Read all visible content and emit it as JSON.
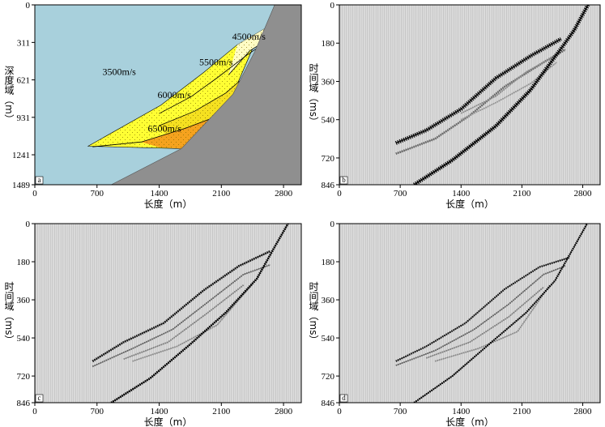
{
  "figure": {
    "panels": [
      {
        "id": "a",
        "label": "a"
      },
      {
        "id": "b",
        "label": "b"
      },
      {
        "id": "c",
        "label": "c"
      },
      {
        "id": "d",
        "label": "d"
      }
    ]
  },
  "chart_data": [
    {
      "panel": "a",
      "type": "diagram",
      "title": "",
      "xlabel": "长度（m）",
      "ylabel": "深度域（m）",
      "xlim": [
        0,
        3000
      ],
      "ylim": [
        1489,
        0
      ],
      "xticks": [
        0,
        700,
        1400,
        2100,
        2800
      ],
      "yticks": [
        0,
        311,
        621,
        931,
        1241,
        1489
      ],
      "regions": [
        {
          "name": "background",
          "velocity": "3500m/s",
          "color": "#a8d0dc"
        },
        {
          "name": "layer-4500",
          "velocity": "4500m/s",
          "color": "#fffcc4"
        },
        {
          "name": "layer-5500",
          "velocity": "5500m/s",
          "color": "#ffff33"
        },
        {
          "name": "layer-6000",
          "velocity": "6000m/s",
          "color": "#f5e020"
        },
        {
          "name": "layer-6500",
          "velocity": "6500m/s",
          "color": "#f5a21e"
        },
        {
          "name": "bedrock",
          "velocity": "",
          "color": "#8f8f8f"
        }
      ],
      "boundaries": {
        "bedrock_top": [
          [
            860,
            1489
          ],
          [
            1650,
            1190
          ],
          [
            2230,
            740
          ],
          [
            2480,
            380
          ],
          [
            2700,
            0
          ]
        ],
        "top_envelope": [
          [
            600,
            1170
          ],
          [
            1420,
            830
          ],
          [
            1900,
            560
          ],
          [
            2280,
            330
          ],
          [
            2630,
            180
          ]
        ],
        "line_4500": [
          [
            2180,
            580
          ],
          [
            2420,
            380
          ],
          [
            2640,
            280
          ]
        ],
        "line_5500": [
          [
            1400,
            900
          ],
          [
            1760,
            760
          ],
          [
            2060,
            600
          ],
          [
            2380,
            420
          ],
          [
            2600,
            310
          ]
        ],
        "line_6000": [
          [
            1400,
            1000
          ],
          [
            1800,
            880
          ],
          [
            2150,
            730
          ],
          [
            2400,
            570
          ]
        ],
        "line_6500": [
          [
            650,
            1175
          ],
          [
            1200,
            1135
          ],
          [
            1700,
            1020
          ],
          [
            2060,
            920
          ]
        ]
      },
      "labels": [
        {
          "text": "3500m/s",
          "x": 950,
          "y": 580
        },
        {
          "text": "4500m/s",
          "x": 2410,
          "y": 290
        },
        {
          "text": "5500m/s",
          "x": 2040,
          "y": 500
        },
        {
          "text": "6000m/s",
          "x": 1570,
          "y": 770
        },
        {
          "text": "6500m/s",
          "x": 1460,
          "y": 1050
        }
      ]
    },
    {
      "panel": "b",
      "type": "seismic-section",
      "xlabel": "长度（m）",
      "ylabel": "时间域（ms）",
      "xlim": [
        0,
        3000
      ],
      "ylim": [
        846,
        0
      ],
      "xticks": [
        0,
        700,
        1400,
        2100,
        2800
      ],
      "yticks": [
        0,
        180,
        360,
        540,
        720,
        846
      ],
      "events": [
        {
          "name": "top",
          "strength": 0.95,
          "width": 5,
          "points": [
            [
              650,
              650
            ],
            [
              1000,
              590
            ],
            [
              1400,
              490
            ],
            [
              1800,
              345
            ],
            [
              2200,
              240
            ],
            [
              2550,
              160
            ]
          ]
        },
        {
          "name": "mid-1",
          "strength": 0.5,
          "width": 3,
          "points": [
            [
              650,
              700
            ],
            [
              1100,
              630
            ],
            [
              1500,
              520
            ],
            [
              1900,
              385
            ],
            [
              2350,
              270
            ],
            [
              2600,
              210
            ]
          ]
        },
        {
          "name": "mid-2",
          "strength": 0.35,
          "width": 2,
          "points": [
            [
              1400,
              510
            ],
            [
              1800,
              430
            ],
            [
              2150,
              315
            ],
            [
              2550,
              225
            ]
          ]
        },
        {
          "name": "mid-3",
          "strength": 0.3,
          "width": 2,
          "points": [
            [
              1400,
              540
            ],
            [
              1800,
              460
            ],
            [
              2200,
              370
            ],
            [
              2500,
              270
            ]
          ]
        },
        {
          "name": "bottom",
          "strength": 1.0,
          "width": 5,
          "points": [
            [
              860,
              846
            ],
            [
              1300,
              730
            ],
            [
              1800,
              570
            ],
            [
              2200,
              400
            ],
            [
              2560,
              200
            ],
            [
              2700,
              120
            ],
            [
              2860,
              0
            ]
          ]
        }
      ]
    },
    {
      "panel": "c",
      "type": "seismic-section",
      "xlabel": "长度（m）",
      "ylabel": "时间域（ms）",
      "xlim": [
        0,
        3000
      ],
      "ylim": [
        846,
        0
      ],
      "xticks": [
        0,
        700,
        1400,
        2100,
        2800
      ],
      "yticks": [
        0,
        180,
        360,
        540,
        720,
        846
      ],
      "events": [
        {
          "name": "top",
          "strength": 0.9,
          "width": 3,
          "points": [
            [
              650,
              650
            ],
            [
              1000,
              560
            ],
            [
              1450,
              470
            ],
            [
              1900,
              315
            ],
            [
              2300,
              200
            ],
            [
              2650,
              130
            ]
          ]
        },
        {
          "name": "mid-1",
          "strength": 0.55,
          "width": 2,
          "points": [
            [
              650,
              675
            ],
            [
              1100,
              590
            ],
            [
              1550,
              500
            ],
            [
              1950,
              370
            ],
            [
              2350,
              240
            ],
            [
              2650,
              195
            ]
          ]
        },
        {
          "name": "mid-2",
          "strength": 0.4,
          "width": 2,
          "points": [
            [
              1000,
              640
            ],
            [
              1500,
              560
            ],
            [
              1950,
              420
            ],
            [
              2350,
              290
            ]
          ]
        },
        {
          "name": "mid-3",
          "strength": 0.35,
          "width": 2,
          "points": [
            [
              1100,
              650
            ],
            [
              1600,
              580
            ],
            [
              2050,
              480
            ],
            [
              2450,
              285
            ]
          ]
        },
        {
          "name": "bottom",
          "strength": 1.0,
          "width": 3,
          "points": [
            [
              860,
              846
            ],
            [
              1300,
              730
            ],
            [
              1750,
              570
            ],
            [
              2150,
              420
            ],
            [
              2500,
              260
            ],
            [
              2700,
              110
            ],
            [
              2850,
              0
            ]
          ]
        }
      ]
    },
    {
      "panel": "d",
      "type": "seismic-section",
      "xlabel": "长度（m）",
      "ylabel": "时间域（ms）",
      "xlim": [
        0,
        3000
      ],
      "ylim": [
        846,
        0
      ],
      "xticks": [
        0,
        700,
        1400,
        2100,
        2800
      ],
      "yticks": [
        0,
        180,
        360,
        540,
        720,
        846
      ],
      "events": [
        {
          "name": "top",
          "strength": 0.9,
          "width": 2.5,
          "points": [
            [
              650,
              650
            ],
            [
              1000,
              580
            ],
            [
              1450,
              470
            ],
            [
              1900,
              310
            ],
            [
              2300,
              205
            ],
            [
              2650,
              160
            ]
          ]
        },
        {
          "name": "mid-1",
          "strength": 0.55,
          "width": 2,
          "points": [
            [
              650,
              670
            ],
            [
              1100,
              600
            ],
            [
              1550,
              500
            ],
            [
              1950,
              380
            ],
            [
              2350,
              240
            ],
            [
              2600,
              200
            ]
          ]
        },
        {
          "name": "mid-2",
          "strength": 0.4,
          "width": 2,
          "points": [
            [
              1000,
              635
            ],
            [
              1500,
              560
            ],
            [
              1950,
              440
            ],
            [
              2350,
              300
            ]
          ]
        },
        {
          "name": "mid-3",
          "strength": 0.35,
          "width": 2,
          "points": [
            [
              1100,
              650
            ],
            [
              1600,
              590
            ],
            [
              2050,
              510
            ],
            [
              2420,
              290
            ]
          ]
        },
        {
          "name": "bottom",
          "strength": 1.0,
          "width": 2.5,
          "points": [
            [
              860,
              846
            ],
            [
              1300,
              720
            ],
            [
              1750,
              560
            ],
            [
              2150,
              420
            ],
            [
              2480,
              270
            ],
            [
              2700,
              110
            ],
            [
              2850,
              0
            ]
          ]
        }
      ]
    }
  ]
}
